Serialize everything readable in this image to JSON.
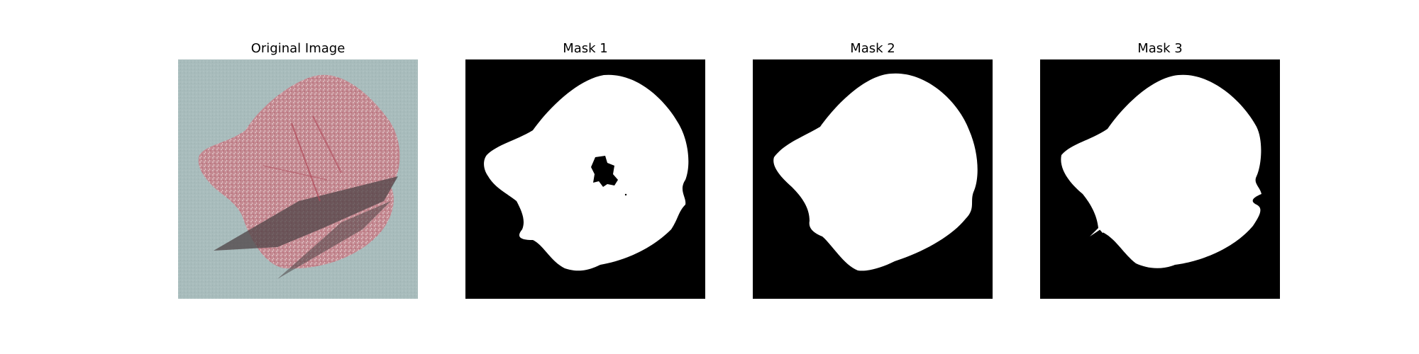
{
  "panels": [
    {
      "title": "Original Image"
    },
    {
      "title": "Mask 1"
    },
    {
      "title": "Mask 2"
    },
    {
      "title": "Mask 3"
    }
  ],
  "colors": {
    "background": "#ffffff",
    "photo_background": "#a8bcbc",
    "leaf": "#c48a92",
    "leaf_shadow": "#5a4f52",
    "mask_background": "#000000",
    "mask_foreground": "#ffffff"
  }
}
